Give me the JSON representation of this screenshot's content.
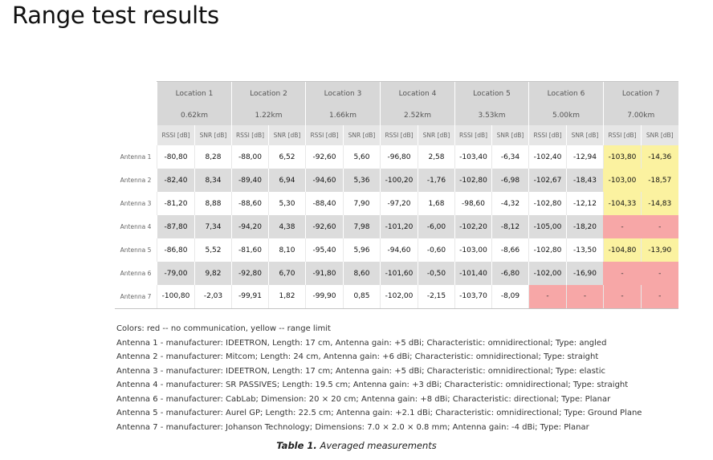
{
  "page": {
    "title": "Range test results"
  },
  "table": {
    "locations": [
      {
        "name": "Location 1",
        "distance": "0.62km"
      },
      {
        "name": "Location 2",
        "distance": "1.22km"
      },
      {
        "name": "Location 3",
        "distance": "1.66km"
      },
      {
        "name": "Location 4",
        "distance": "2.52km"
      },
      {
        "name": "Location 5",
        "distance": "3.53km"
      },
      {
        "name": "Location 6",
        "distance": "5.00km"
      },
      {
        "name": "Location 7",
        "distance": "7.00km"
      }
    ],
    "rssi_header": "RSSI [dB]",
    "snr_header": "SNR [dB]",
    "status_colors": {
      "red": "#f7a7a7",
      "yellow": "#fbf2a0"
    },
    "rows": [
      {
        "label": "Antenna 1",
        "cells": [
          {
            "v": "-80,80"
          },
          {
            "v": "8,28"
          },
          {
            "v": "-88,00"
          },
          {
            "v": "6,52"
          },
          {
            "v": "-92,60"
          },
          {
            "v": "5,60"
          },
          {
            "v": "-96,80"
          },
          {
            "v": "2,58"
          },
          {
            "v": "-103,40"
          },
          {
            "v": "-6,34"
          },
          {
            "v": "-102,40"
          },
          {
            "v": "-12,94"
          },
          {
            "v": "-103,80",
            "s": "yellow"
          },
          {
            "v": "-14,36",
            "s": "yellow"
          }
        ]
      },
      {
        "label": "Antenna 2",
        "cells": [
          {
            "v": "-82,40"
          },
          {
            "v": "8,34"
          },
          {
            "v": "-89,40"
          },
          {
            "v": "6,94"
          },
          {
            "v": "-94,60"
          },
          {
            "v": "5,36"
          },
          {
            "v": "-100,20"
          },
          {
            "v": "-1,76"
          },
          {
            "v": "-102,80"
          },
          {
            "v": "-6,98"
          },
          {
            "v": "-102,67"
          },
          {
            "v": "-18,43"
          },
          {
            "v": "-103,00",
            "s": "yellow"
          },
          {
            "v": "-18,57",
            "s": "yellow"
          }
        ]
      },
      {
        "label": "Antenna 3",
        "cells": [
          {
            "v": "-81,20"
          },
          {
            "v": "8,88"
          },
          {
            "v": "-88,60"
          },
          {
            "v": "5,30"
          },
          {
            "v": "-88,40"
          },
          {
            "v": "7,90"
          },
          {
            "v": "-97,20"
          },
          {
            "v": "1,68"
          },
          {
            "v": "-98,60"
          },
          {
            "v": "-4,32"
          },
          {
            "v": "-102,80"
          },
          {
            "v": "-12,12"
          },
          {
            "v": "-104,33",
            "s": "yellow"
          },
          {
            "v": "-14,83",
            "s": "yellow"
          }
        ]
      },
      {
        "label": "Antenna 4",
        "cells": [
          {
            "v": "-87,80"
          },
          {
            "v": "7,34"
          },
          {
            "v": "-94,20"
          },
          {
            "v": "4,38"
          },
          {
            "v": "-92,60"
          },
          {
            "v": "7,98"
          },
          {
            "v": "-101,20"
          },
          {
            "v": "-6,00"
          },
          {
            "v": "-102,20"
          },
          {
            "v": "-8,12"
          },
          {
            "v": "-105,00"
          },
          {
            "v": "-18,20"
          },
          {
            "v": "-",
            "s": "red"
          },
          {
            "v": "-",
            "s": "red"
          }
        ]
      },
      {
        "label": "Antenna 5",
        "cells": [
          {
            "v": "-86,80"
          },
          {
            "v": "5,52"
          },
          {
            "v": "-81,60"
          },
          {
            "v": "8,10"
          },
          {
            "v": "-95,40"
          },
          {
            "v": "5,96"
          },
          {
            "v": "-94,60"
          },
          {
            "v": "-0,60"
          },
          {
            "v": "-103,00"
          },
          {
            "v": "-8,66"
          },
          {
            "v": "-102,80"
          },
          {
            "v": "-13,50"
          },
          {
            "v": "-104,80",
            "s": "yellow"
          },
          {
            "v": "-13,90",
            "s": "yellow"
          }
        ]
      },
      {
        "label": "Antenna 6",
        "cells": [
          {
            "v": "-79,00"
          },
          {
            "v": "9,82"
          },
          {
            "v": "-92,80"
          },
          {
            "v": "6,70"
          },
          {
            "v": "-91,80"
          },
          {
            "v": "8,60"
          },
          {
            "v": "-101,60"
          },
          {
            "v": "-0,50"
          },
          {
            "v": "-101,40"
          },
          {
            "v": "-6,80"
          },
          {
            "v": "-102,00"
          },
          {
            "v": "-16,90"
          },
          {
            "v": "-",
            "s": "red"
          },
          {
            "v": "-",
            "s": "red"
          }
        ]
      },
      {
        "label": "Antenna 7",
        "cells": [
          {
            "v": "-100,80"
          },
          {
            "v": "-2,03"
          },
          {
            "v": "-99,91"
          },
          {
            "v": "1,82"
          },
          {
            "v": "-99,90"
          },
          {
            "v": "0,85"
          },
          {
            "v": "-102,00"
          },
          {
            "v": "-2,15"
          },
          {
            "v": "-103,70"
          },
          {
            "v": "-8,09"
          },
          {
            "v": "-",
            "s": "red"
          },
          {
            "v": "-",
            "s": "red"
          },
          {
            "v": "-",
            "s": "red"
          },
          {
            "v": "-",
            "s": "red"
          }
        ]
      }
    ]
  },
  "notes": [
    "Colors: red -- no communication, yellow -- range limit",
    "Antenna 1 - manufacturer: IDEETRON, Length: 17 cm, Antenna gain: +5 dBi; Characteristic: omnidirectional; Type: angled",
    "Antenna 2 - manufacturer: Mitcom; Length: 24 cm, Antenna gain: +6 dBi; Characteristic: omnidirectional; Type: straight",
    "Antenna 3 - manufacturer: IDEETRON, Length: 17 cm; Antenna gain: +5 dBi; Characteristic: omnidirectional; Type: elastic",
    "Antenna 4 - manufacturer: SR PASSIVES; Length: 19.5 cm; Antenna gain: +3 dBi; Characteristic: omnidirectional; Type: straight",
    "Antenna 6 - manufacturer: CabLab; Dimension: 20 × 20 cm; Antenna gain: +8 dBi; Characteristic: directional; Type: Planar",
    "Antenna 5 - manufacturer: Aurel GP; Length: 22.5 cm; Antenna gain: +2.1 dBi; Characteristic: omnidirectional; Type: Ground Plane",
    "Antenna 7 - manufacturer: Johanson Technology; Dimensions: 7.0 × 2.0 × 0.8 mm; Antenna gain: -4 dBi; Type: Planar"
  ],
  "caption": {
    "label": "Table 1.",
    "text": " Averaged measurements"
  }
}
